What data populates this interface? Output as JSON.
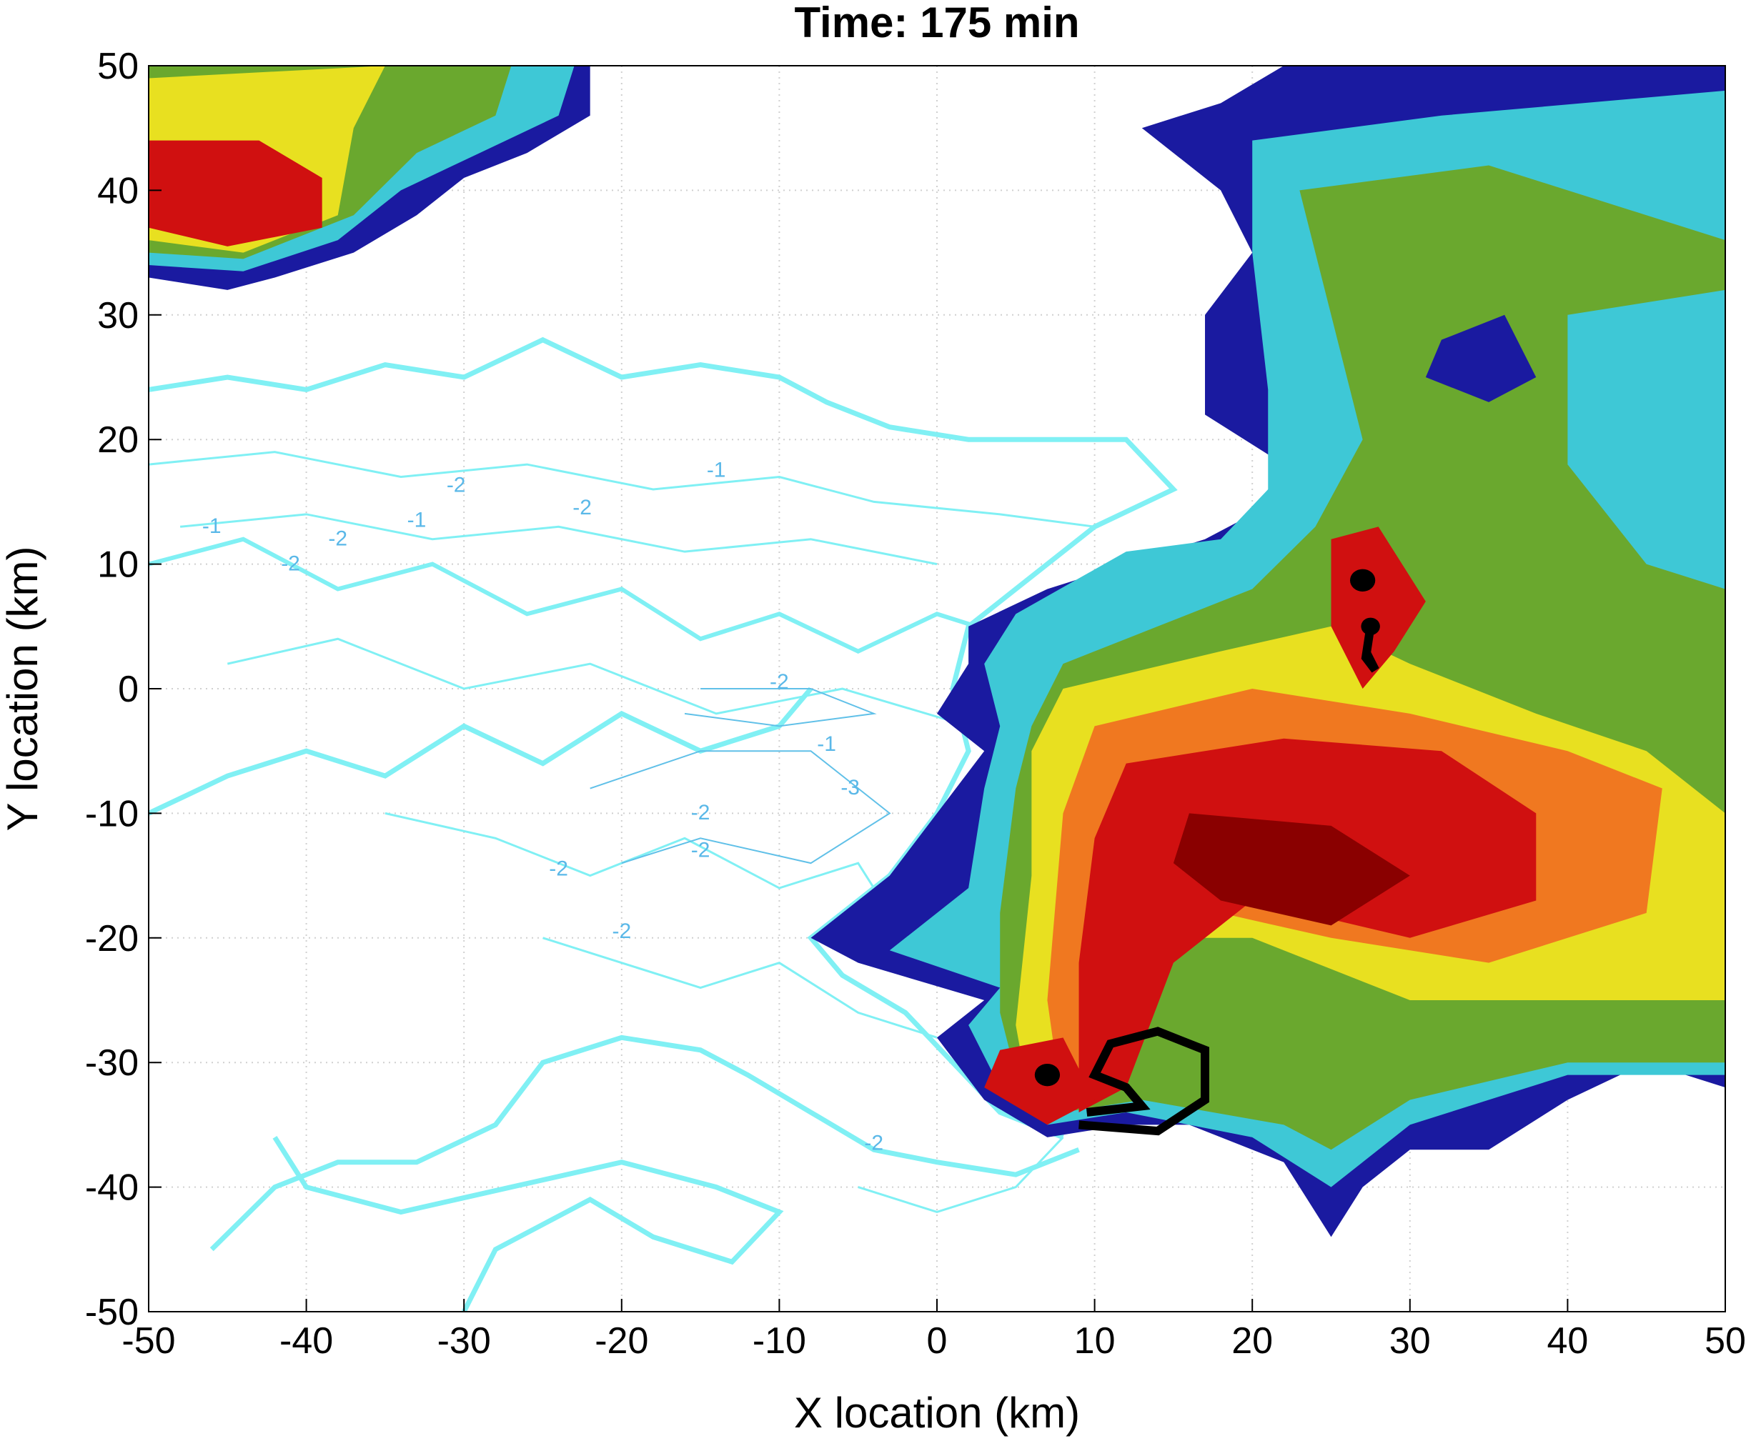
{
  "chart_data": {
    "type": "contour",
    "title": "Time: 175 min",
    "xlabel": "X location (km)",
    "ylabel": "Y location (km)",
    "xlim": [
      -50,
      50
    ],
    "ylim": [
      -50,
      50
    ],
    "xticks": [
      -50,
      -40,
      -30,
      -20,
      -10,
      0,
      10,
      20,
      30,
      40,
      50
    ],
    "yticks": [
      -50,
      -40,
      -30,
      -20,
      -10,
      0,
      10,
      20,
      30,
      40,
      50
    ],
    "grid": true,
    "contour_labels": [
      -2,
      -1,
      -1,
      -2,
      -1,
      -2,
      -2,
      -1,
      -3,
      -2,
      -2,
      -2,
      -2,
      -2,
      -2
    ]
  }
}
